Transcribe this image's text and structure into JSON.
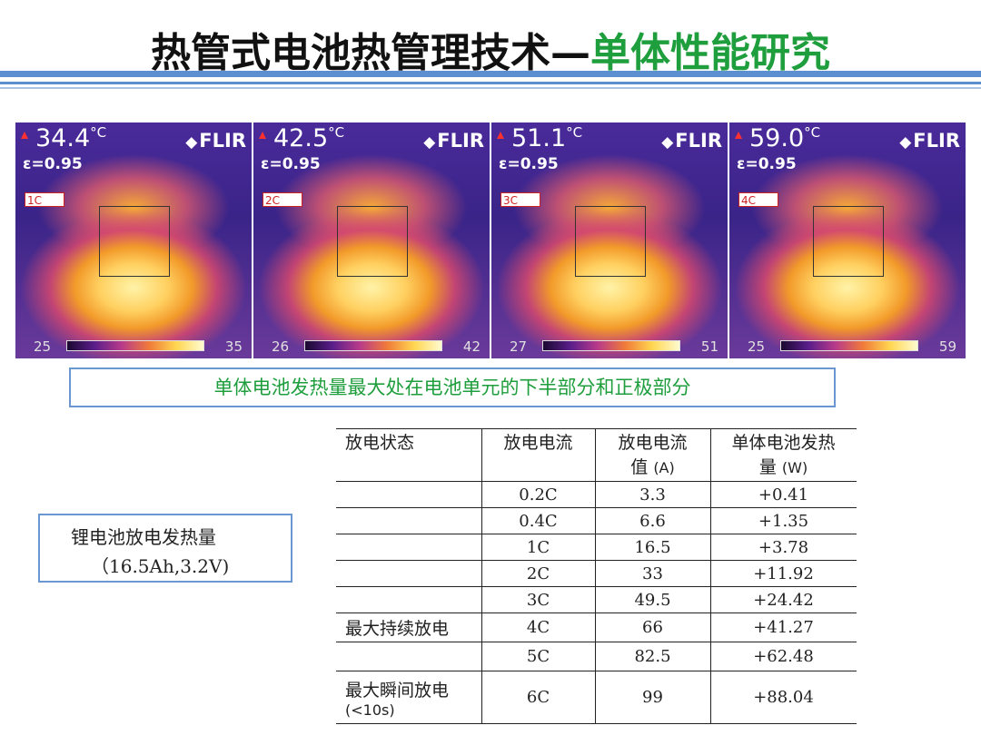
{
  "title": {
    "main": "热管式电池热管理技术",
    "dash": "—",
    "sub": "单体性能研究"
  },
  "thermal_images": [
    {
      "temp": "34.4",
      "unit": "°C",
      "emissivity": "ε=0.95",
      "brand": "FLIR",
      "label": "1C",
      "scale_min": "25",
      "scale_max": "35"
    },
    {
      "temp": "42.5",
      "unit": "°C",
      "emissivity": "ε=0.95",
      "brand": "FLIR",
      "label": "2C",
      "scale_min": "26",
      "scale_max": "42"
    },
    {
      "temp": "51.1",
      "unit": "°C",
      "emissivity": "ε=0.95",
      "brand": "FLIR",
      "label": "3C",
      "scale_min": "27",
      "scale_max": "51"
    },
    {
      "temp": "59.0",
      "unit": "°C",
      "emissivity": "ε=0.95",
      "brand": "FLIR",
      "label": "4C",
      "scale_min": "25",
      "scale_max": "59"
    }
  ],
  "finding": "单体电池发热量最大处在电池单元的下半部分和正极部分",
  "sidebox": {
    "line1": "锂电池放电发热量",
    "line2": "（16.5Ah,3.2V)"
  },
  "table": {
    "headers": {
      "state": "放电状态",
      "rate": "放电电流",
      "current_1": "放电电流",
      "current_2": "值",
      "current_unit": "(A)",
      "heat_1": "单体电池发热",
      "heat_2": "量",
      "heat_unit": "(W)"
    },
    "rows": [
      {
        "state": "",
        "rate": "0.2C",
        "current": "3.3",
        "heat": "+0.41"
      },
      {
        "state": "",
        "rate": "0.4C",
        "current": "6.6",
        "heat": "+1.35"
      },
      {
        "state": "",
        "rate": "1C",
        "current": "16.5",
        "heat": "+3.78"
      },
      {
        "state": "",
        "rate": "2C",
        "current": "33",
        "heat": "+11.92"
      },
      {
        "state": "",
        "rate": "3C",
        "current": "49.5",
        "heat": "+24.42"
      },
      {
        "state": "最大持续放电",
        "rate": "4C",
        "current": "66",
        "heat": "+41.27"
      },
      {
        "state": "",
        "rate": "5C",
        "current": "82.5",
        "heat": "+62.48"
      },
      {
        "state": "最大瞬间放电",
        "state_note": "(<10s)",
        "rate": "6C",
        "current": "99",
        "heat": "+88.04"
      }
    ]
  },
  "colors": {
    "accent_blue": "#5b8fd0",
    "title_green": "#1e9e3c"
  }
}
